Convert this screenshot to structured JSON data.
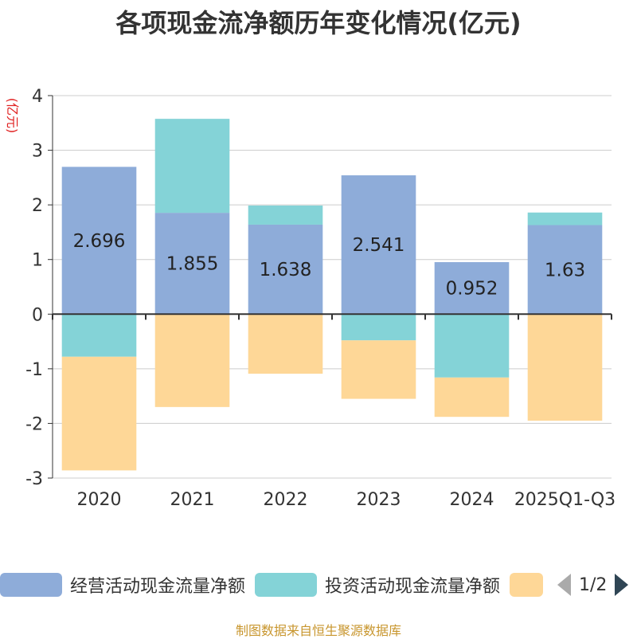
{
  "chart_data": {
    "type": "bar",
    "stacked": true,
    "title": "各项现金流净额历年变化情况(亿元)",
    "ylabel": "(亿元)",
    "ylim": [
      -3,
      4
    ],
    "yticks": [
      4,
      3,
      2,
      1,
      0,
      -1,
      -2,
      -3
    ],
    "categories": [
      "2020",
      "2021",
      "2022",
      "2023",
      "2024",
      "2025Q1-Q3"
    ],
    "series": [
      {
        "name": "经营活动现金流量净额",
        "color": "#8eacd9",
        "values": [
          2.696,
          1.855,
          1.638,
          2.541,
          0.952,
          1.63
        ],
        "labels": [
          "2.696",
          "1.855",
          "1.638",
          "2.541",
          "0.952",
          "1.63"
        ]
      },
      {
        "name": "投资活动现金流量净额",
        "color": "#84d3d7",
        "values": [
          -0.78,
          1.72,
          0.35,
          -0.48,
          -1.16,
          0.23
        ]
      },
      {
        "name": "",
        "color": "#fed797",
        "values": [
          -2.08,
          -1.7,
          -1.09,
          -1.07,
          -0.72,
          -1.95
        ]
      }
    ],
    "legend": {
      "position": "bottom",
      "page": "1/2"
    },
    "source": "制图数据来自恒生聚源数据库"
  }
}
